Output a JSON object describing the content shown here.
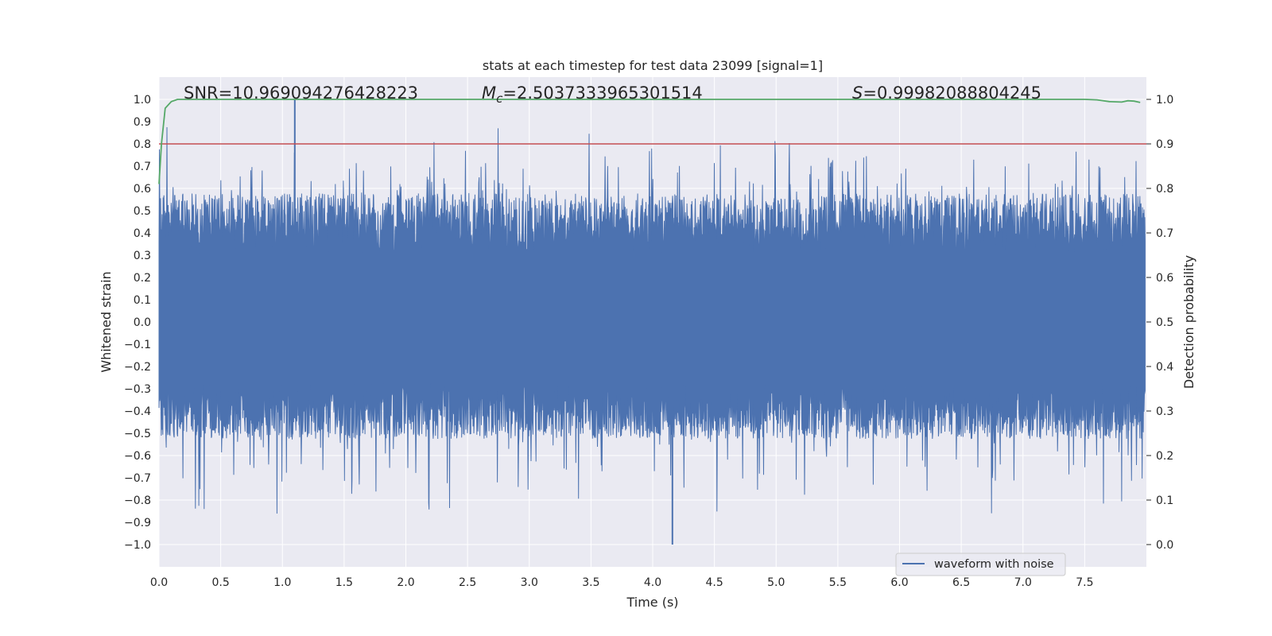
{
  "chart_data": {
    "type": "line",
    "title": "stats at each timestep for test data 23099 [signal=1]",
    "xlabel": "Time (s)",
    "ylabel": "Whitened strain",
    "y2label": "Detection probability",
    "xlim": [
      0.0,
      8.0
    ],
    "ylim": [
      -1.1,
      1.1
    ],
    "y2lim": [
      -0.05,
      1.05
    ],
    "xticks": [
      "0.0",
      "0.5",
      "1.0",
      "1.5",
      "2.0",
      "2.5",
      "3.0",
      "3.5",
      "4.0",
      "4.5",
      "5.0",
      "5.5",
      "6.0",
      "6.5",
      "7.0",
      "7.5"
    ],
    "yticks": [
      "1.0",
      "0.9",
      "0.8",
      "0.7",
      "0.6",
      "0.5",
      "0.4",
      "0.3",
      "0.2",
      "0.1",
      "0.0",
      "−0.1",
      "−0.2",
      "−0.3",
      "−0.4",
      "−0.5",
      "−0.6",
      "−0.7",
      "−0.8",
      "−0.9",
      "−1.0"
    ],
    "y2ticks": [
      "1.0",
      "0.9",
      "0.8",
      "0.7",
      "0.6",
      "0.5",
      "0.4",
      "0.3",
      "0.2",
      "0.1",
      "0.0"
    ],
    "annotations": {
      "snr": "SNR=10.969094276428223",
      "mc_symbol": "M",
      "mc_sub": "c",
      "mc_value": "=2.5037333965301514",
      "s_symbol": "S",
      "s_value": "=0.99982088804245"
    },
    "series": [
      {
        "name": "waveform with noise",
        "color": "#4c72b0",
        "kind": "noisy strain",
        "x_range": [
          0.0,
          7.99
        ],
        "typical_envelope": [
          -0.5,
          0.55
        ],
        "max": 1.0,
        "min": -1.0
      },
      {
        "name": "threshold",
        "color": "#c44e52",
        "axis": "right",
        "value": 0.9
      },
      {
        "name": "detection probability",
        "color": "#55a868",
        "axis": "right",
        "x": [
          0.0,
          0.02,
          0.05,
          0.1,
          0.15,
          0.5,
          1.0,
          2.0,
          3.0,
          4.0,
          5.0,
          6.0,
          7.0,
          7.5,
          7.6,
          7.7,
          7.8,
          7.85,
          7.9,
          7.95
        ],
        "y": [
          0.81,
          0.9,
          0.98,
          0.995,
          1.0,
          1.0,
          1.0,
          1.0,
          1.0,
          1.0,
          1.0,
          1.0,
          1.0,
          1.0,
          0.999,
          0.995,
          0.994,
          0.997,
          0.996,
          0.993
        ]
      }
    ],
    "legend": {
      "label": "waveform with noise",
      "position": "lower-right"
    }
  }
}
